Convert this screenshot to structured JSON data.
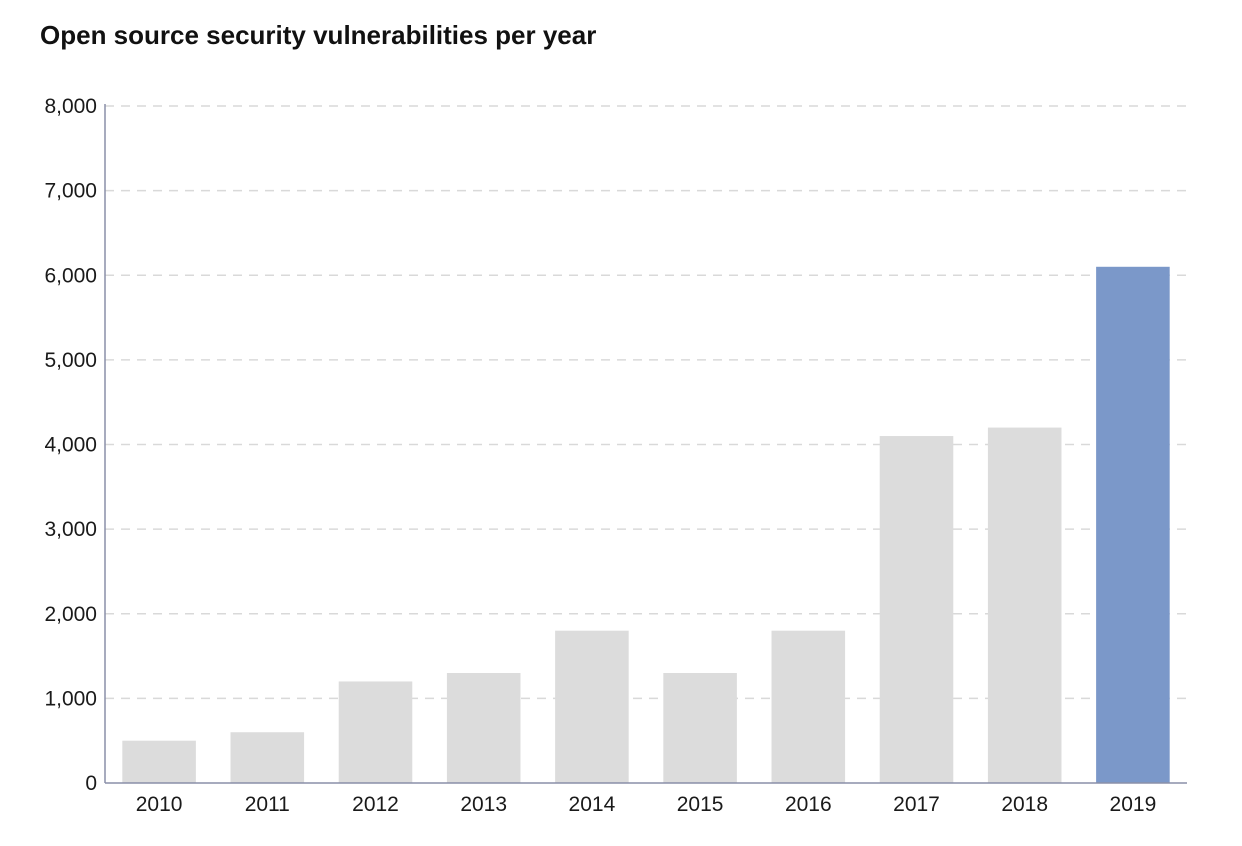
{
  "chart_data": {
    "type": "bar",
    "title": "Open source security vulnerabilities per year",
    "xlabel": "",
    "ylabel": "",
    "categories": [
      "2010",
      "2011",
      "2012",
      "2013",
      "2014",
      "2015",
      "2016",
      "2017",
      "2018",
      "2019"
    ],
    "values": [
      500,
      600,
      1200,
      1300,
      1800,
      1300,
      1800,
      4100,
      4200,
      6100
    ],
    "ylim": [
      0,
      8000
    ],
    "yticks": [
      0,
      1000,
      2000,
      3000,
      4000,
      5000,
      6000,
      7000,
      8000
    ],
    "ytick_labels": [
      "0",
      "1,000",
      "2,000",
      "3,000",
      "4,000",
      "5,000",
      "6,000",
      "7,000",
      "8,000"
    ],
    "grid": "horizontal dashed",
    "legend": "none",
    "colors": {
      "bar_default": "#dcdcdc",
      "bar_highlight": "#7b98c9",
      "highlight_category": "2019",
      "axis": "#8a8fa8",
      "grid": "#d9d9d9",
      "text": "#1a1a1a"
    }
  }
}
